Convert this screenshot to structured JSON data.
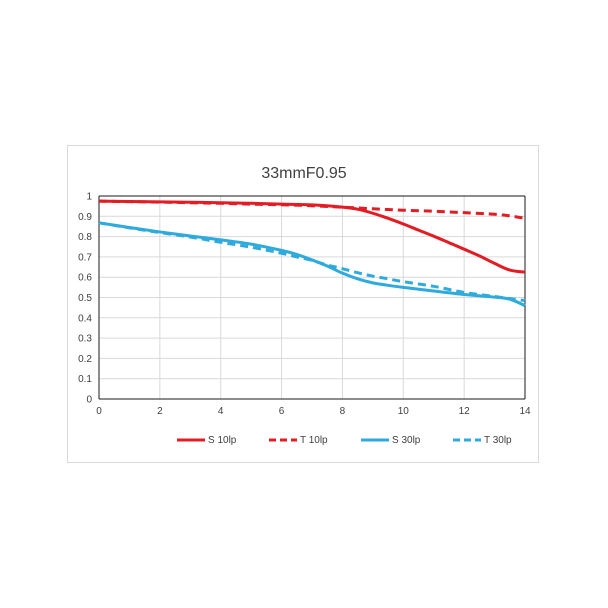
{
  "chart_data": {
    "type": "line",
    "title": "33mmF0.95",
    "xlabel": "",
    "ylabel": "",
    "xlim": [
      0,
      14
    ],
    "ylim": [
      0,
      1
    ],
    "x_ticks": [
      "0",
      "2",
      "4",
      "6",
      "8",
      "10",
      "12",
      "14"
    ],
    "y_ticks": [
      "0",
      "0.1",
      "0.2",
      "0.3",
      "0.4",
      "0.5",
      "0.6",
      "0.7",
      "0.8",
      "0.9",
      "1"
    ],
    "grid": true,
    "legend_position": "bottom",
    "series": [
      {
        "name": "S 10lp",
        "color": "#e31c23",
        "dash": false,
        "x": [
          0,
          1,
          2,
          3,
          4,
          5,
          6,
          7,
          8,
          8.5,
          9,
          9.5,
          10,
          10.5,
          11,
          11.5,
          12,
          12.5,
          13,
          13.5,
          14
        ],
        "y": [
          0.975,
          0.973,
          0.971,
          0.969,
          0.967,
          0.964,
          0.96,
          0.956,
          0.945,
          0.935,
          0.915,
          0.89,
          0.862,
          0.832,
          0.802,
          0.77,
          0.738,
          0.705,
          0.668,
          0.635,
          0.625
        ]
      },
      {
        "name": "T 10lp",
        "color": "#e31c23",
        "dash": true,
        "x": [
          0,
          1,
          2,
          3,
          4,
          5,
          6,
          7,
          8,
          9,
          10,
          11,
          12,
          13,
          13.5,
          14
        ],
        "y": [
          0.975,
          0.972,
          0.97,
          0.967,
          0.964,
          0.96,
          0.957,
          0.952,
          0.945,
          0.937,
          0.93,
          0.925,
          0.918,
          0.91,
          0.902,
          0.89
        ]
      },
      {
        "name": "S 30lp",
        "color": "#2eaadc",
        "dash": false,
        "x": [
          0,
          1,
          2,
          3,
          4,
          5,
          6,
          6.5,
          7,
          7.5,
          8,
          8.5,
          9,
          9.5,
          10,
          11,
          12,
          13,
          13.5,
          14
        ],
        "y": [
          0.868,
          0.845,
          0.823,
          0.803,
          0.784,
          0.763,
          0.732,
          0.712,
          0.685,
          0.655,
          0.62,
          0.592,
          0.572,
          0.56,
          0.55,
          0.532,
          0.515,
          0.502,
          0.492,
          0.46
        ]
      },
      {
        "name": "T 30lp",
        "color": "#2eaadc",
        "dash": true,
        "x": [
          0,
          1,
          2,
          3,
          4,
          5,
          6,
          6.5,
          7,
          7.5,
          8,
          8.5,
          9,
          9.5,
          10,
          11,
          12,
          13,
          14
        ],
        "y": [
          0.868,
          0.843,
          0.82,
          0.798,
          0.772,
          0.748,
          0.718,
          0.7,
          0.683,
          0.66,
          0.642,
          0.622,
          0.605,
          0.592,
          0.578,
          0.555,
          0.525,
          0.505,
          0.485
        ]
      }
    ]
  }
}
